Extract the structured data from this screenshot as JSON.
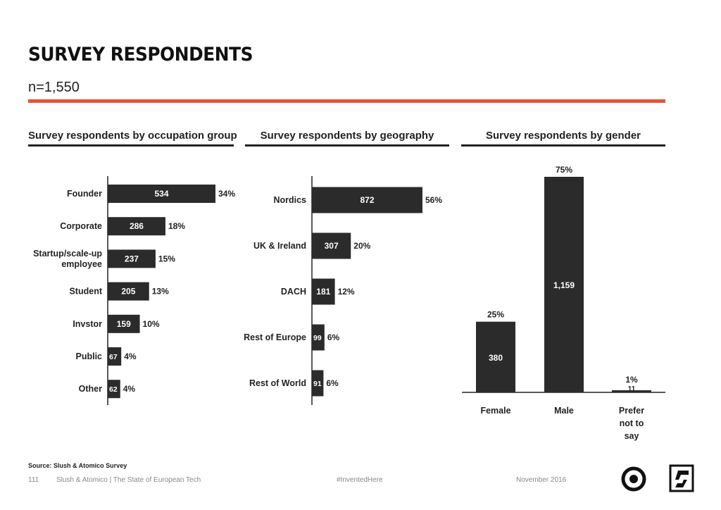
{
  "header": {
    "title": "SURVEY RESPONDENTS",
    "subtitle": "n=1,550"
  },
  "colors": {
    "accent": "#e8533a",
    "bar": "#2b2b2b",
    "text": "#222222",
    "muted": "#888888"
  },
  "chart_data": [
    {
      "type": "bar",
      "orientation": "horizontal",
      "title": "Survey respondents by occupation group",
      "categories": [
        "Founder",
        "Corporate",
        "Startup/scale-up employee",
        "Student",
        "Invstor",
        "Public",
        "Other"
      ],
      "values": [
        534,
        286,
        237,
        205,
        159,
        67,
        62
      ],
      "value_labels": [
        "534",
        "286",
        "237",
        "205",
        "159",
        "67",
        "62"
      ],
      "percent_labels": [
        "34%",
        "18%",
        "15%",
        "13%",
        "10%",
        "4%",
        "4%"
      ]
    },
    {
      "type": "bar",
      "orientation": "horizontal",
      "title": "Survey respondents by geography",
      "categories": [
        "Nordics",
        "UK & Ireland",
        "DACH",
        "Rest of Europe",
        "Rest of World"
      ],
      "values": [
        872,
        307,
        181,
        99,
        91
      ],
      "value_labels": [
        "872",
        "307",
        "181",
        "99",
        "91"
      ],
      "percent_labels": [
        "56%",
        "20%",
        "12%",
        "6%",
        "6%"
      ]
    },
    {
      "type": "bar",
      "orientation": "vertical",
      "title": "Survey respondents by gender",
      "categories": [
        "Female",
        "Male",
        "Prefer not to say"
      ],
      "values": [
        380,
        1159,
        11
      ],
      "value_labels": [
        "380",
        "1,159",
        "11"
      ],
      "percent_labels": [
        "25%",
        "75%",
        "1%"
      ]
    }
  ],
  "footer": {
    "source": "Source: Slush & Atomico Survey",
    "page_number": "111",
    "publication": "Slush & Atomico  |  The State of European Tech",
    "hashtag": "#InventedHere",
    "date": "November 2016",
    "logos": [
      "atomico-logo-icon",
      "slush-logo-icon"
    ]
  }
}
